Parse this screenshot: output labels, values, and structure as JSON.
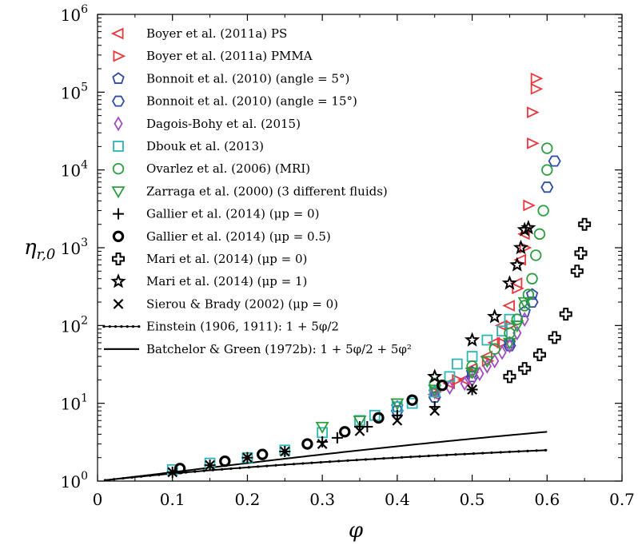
{
  "chart_data": {
    "type": "scatter",
    "xlabel": "φ",
    "ylabel": "η_{r,0}",
    "xlim": [
      0,
      0.7
    ],
    "ylim": [
      1,
      1000000
    ],
    "yscale": "log",
    "x_ticks": [
      "0",
      "0.1",
      "0.2",
      "0.3",
      "0.4",
      "0.5",
      "0.6",
      "0.7"
    ],
    "y_ticks": [
      "10^0",
      "10^1",
      "10^2",
      "10^3",
      "10^4",
      "10^5",
      "10^6"
    ],
    "legend_position": "top-left",
    "series": [
      {
        "name": "Boyer et al. (2011a) PS",
        "marker": "tri-left",
        "color": "#e8383d",
        "x": [
          0.45,
          0.47,
          0.49,
          0.5,
          0.52,
          0.53,
          0.54,
          0.55,
          0.56,
          0.565,
          0.57
        ],
        "y": [
          13,
          18,
          20,
          28,
          40,
          60,
          100,
          180,
          350,
          700,
          1500
        ]
      },
      {
        "name": "Boyer et al. (2011a) PMMA",
        "marker": "tri-right",
        "color": "#e8383d",
        "x": [
          0.45,
          0.48,
          0.5,
          0.52,
          0.54,
          0.55,
          0.56,
          0.57,
          0.575,
          0.58,
          0.58,
          0.585,
          0.585
        ],
        "y": [
          14,
          20,
          25,
          35,
          60,
          100,
          300,
          1000,
          3500,
          22000,
          55000,
          110000,
          150000
        ]
      },
      {
        "name": "Bonnoit et al. (2010) (angle = 5°)",
        "marker": "pentagon",
        "color": "#2c4aa8",
        "x": [
          0.4,
          0.45,
          0.5,
          0.55,
          0.57,
          0.58
        ],
        "y": [
          9,
          14,
          25,
          60,
          150,
          250
        ]
      },
      {
        "name": "Bonnoit et al. (2010) (angle = 15°)",
        "marker": "hexagon",
        "color": "#2c4aa8",
        "x": [
          0.4,
          0.45,
          0.5,
          0.55,
          0.58,
          0.6,
          0.61
        ],
        "y": [
          8,
          12,
          22,
          55,
          200,
          6000,
          13000
        ]
      },
      {
        "name": "Dagois-Bohy et al. (2015)",
        "marker": "diamond",
        "color": "#a24cbe",
        "x": [
          0.45,
          0.47,
          0.49,
          0.5,
          0.51,
          0.52,
          0.53,
          0.54,
          0.55,
          0.56,
          0.57
        ],
        "y": [
          14,
          16,
          18,
          20,
          24,
          30,
          35,
          45,
          55,
          80,
          120
        ]
      },
      {
        "name": "Dbouk et al. (2013)",
        "marker": "square",
        "color": "#2bb5b5",
        "x": [
          0.1,
          0.15,
          0.2,
          0.25,
          0.3,
          0.35,
          0.37,
          0.4,
          0.42,
          0.45,
          0.47,
          0.48,
          0.5,
          0.52,
          0.54,
          0.55
        ],
        "y": [
          1.4,
          1.7,
          2.0,
          2.5,
          4.2,
          6.0,
          7.0,
          9.0,
          10,
          14,
          22,
          32,
          40,
          65,
          85,
          120
        ]
      },
      {
        "name": "Ovarlez et al. (2006) (MRI)",
        "marker": "circle",
        "color": "#2a9d3f",
        "x": [
          0.45,
          0.5,
          0.53,
          0.55,
          0.56,
          0.57,
          0.575,
          0.58,
          0.585,
          0.59,
          0.595,
          0.6,
          0.6
        ],
        "y": [
          18,
          30,
          50,
          80,
          120,
          180,
          250,
          400,
          800,
          1500,
          3000,
          10000,
          19000
        ]
      },
      {
        "name": "Zarraga et al. (2000) (3 different fluids)",
        "marker": "tri-down",
        "color": "#2a9d3f",
        "x": [
          0.3,
          0.35,
          0.4,
          0.45,
          0.5,
          0.52,
          0.55,
          0.56,
          0.57
        ],
        "y": [
          5,
          6,
          10,
          15,
          25,
          35,
          60,
          100,
          200
        ]
      },
      {
        "name": "Gallier et al. (2014) (μp = 0)",
        "marker": "plus",
        "color": "#000000",
        "x": [
          0.1,
          0.15,
          0.2,
          0.25,
          0.3,
          0.32,
          0.35,
          0.36,
          0.4,
          0.45,
          0.5
        ],
        "y": [
          1.3,
          1.6,
          2.0,
          2.4,
          3.2,
          3.6,
          5.0,
          5.0,
          7.0,
          9.0,
          15
        ]
      },
      {
        "name": "Gallier et al. (2014) (μp = 0.5)",
        "marker": "circle-bold",
        "color": "#000000",
        "x": [
          0.11,
          0.17,
          0.22,
          0.28,
          0.33,
          0.375,
          0.42,
          0.46
        ],
        "y": [
          1.45,
          1.8,
          2.2,
          3.0,
          4.3,
          6.5,
          11,
          17
        ]
      },
      {
        "name": "Mari et al. (2014) (μp = 0)",
        "marker": "cross-bold",
        "color": "#000000",
        "x": [
          0.55,
          0.57,
          0.59,
          0.61,
          0.625,
          0.64,
          0.645,
          0.65
        ],
        "y": [
          22,
          28,
          42,
          70,
          140,
          500,
          850,
          2000
        ]
      },
      {
        "name": "Mari et al. (2014) (μp = 1)",
        "marker": "star",
        "color": "#000000",
        "x": [
          0.45,
          0.5,
          0.53,
          0.55,
          0.56,
          0.565,
          0.57,
          0.575
        ],
        "y": [
          22,
          65,
          130,
          350,
          600,
          1000,
          1700,
          1800
        ]
      },
      {
        "name": "Sierou & Brady (2002) (μp = 0)",
        "marker": "x",
        "color": "#000000",
        "x": [
          0.1,
          0.15,
          0.2,
          0.25,
          0.3,
          0.35,
          0.4,
          0.45,
          0.5
        ],
        "y": [
          1.3,
          1.6,
          2.0,
          2.4,
          3.0,
          4.4,
          6.0,
          8.0,
          15
        ]
      },
      {
        "name": "Einstein (1906, 1911): 1 + 5φ/2",
        "marker": "dotted-line",
        "color": "#000000",
        "formula": "1 + 5φ/2"
      },
      {
        "name": "Batchelor & Green (1972b): 1 + 5φ/2 + 5φ²",
        "marker": "line",
        "color": "#000000",
        "formula": "1 + 5φ/2 + 5φ²"
      }
    ]
  }
}
